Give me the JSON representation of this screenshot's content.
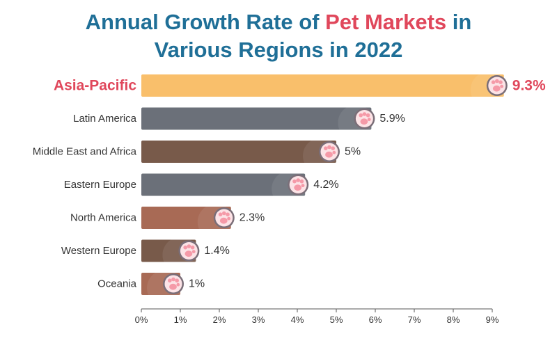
{
  "title": {
    "line1_pre": "Annual Growth Rate of ",
    "line1_highlight": "Pet Markets",
    "line1_post": " in",
    "line2": "Various Regions in 2022"
  },
  "chart_data": {
    "type": "bar",
    "orientation": "horizontal",
    "title": "Annual Growth Rate of Pet Markets in Various Regions in 2022",
    "xlabel": "",
    "ylabel": "",
    "categories": [
      "Asia-Pacific",
      "Latin America",
      "Middle East and Africa",
      "Eastern Europe",
      "North America",
      "Western Europe",
      "Oceania"
    ],
    "values": [
      9.3,
      5.9,
      5,
      4.2,
      2.3,
      1.4,
      1
    ],
    "value_labels": [
      "9.3%",
      "5.9%",
      "5%",
      "4.2%",
      "2.3%",
      "1.4%",
      "1%"
    ],
    "highlighted_category": "Asia-Pacific",
    "bar_colors": [
      "#f9bf6b",
      "#6b7079",
      "#785a4a",
      "#6b7079",
      "#a86a55",
      "#785a4a",
      "#a86a55"
    ],
    "xlim": [
      0,
      9
    ],
    "xticks": [
      0,
      1,
      2,
      3,
      4,
      5,
      6,
      7,
      8,
      9
    ],
    "xtick_labels": [
      "0%",
      "1%",
      "2%",
      "3%",
      "4%",
      "5%",
      "6%",
      "7%",
      "8%",
      "9%"
    ],
    "grid": false,
    "legend": "none",
    "marker": "paw-icon"
  },
  "colors": {
    "title": "#1f6f97",
    "highlight": "#e0475b",
    "paw_fill": "#f59aa8",
    "paw_stroke": "#7a6e78"
  }
}
